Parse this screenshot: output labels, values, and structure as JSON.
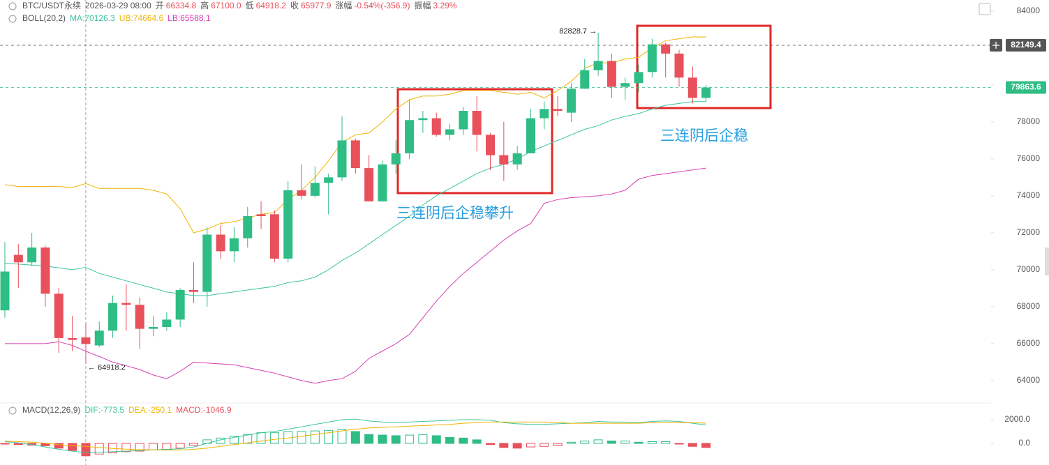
{
  "chart_data": {
    "type": "candlestick",
    "readout": {
      "symbol": "BTC/USDT永续",
      "time": "2026-03-29 08:00",
      "fields": [
        {
          "label": "开",
          "value": "66334.8"
        },
        {
          "label": "高",
          "value": "67100.0"
        },
        {
          "label": "低",
          "value": "64918.2"
        },
        {
          "label": "收",
          "value": "65977.9"
        },
        {
          "label": "涨幅",
          "value": "-0.54%(-356.9)"
        },
        {
          "label": "振幅",
          "value": "3.29%"
        }
      ]
    },
    "up_color": "#2ebd85",
    "down_color": "#e8505b",
    "open": [
      67800,
      70800,
      70400,
      71200,
      68700,
      66300,
      66334.8,
      65900,
      66700,
      68200,
      68100,
      66800,
      66900,
      67300,
      68900,
      68800,
      71900,
      71000,
      71700,
      73000,
      73000,
      70600,
      74300,
      74000,
      74700,
      75000,
      77000,
      75500,
      73700,
      75700,
      76300,
      78100,
      78200,
      77300,
      77600,
      78600,
      77300,
      76200,
      75700,
      76300,
      78200,
      78700,
      78500,
      79800,
      80800,
      81300,
      79900,
      80100,
      80700,
      82200,
      81700,
      80400,
      79300
    ],
    "high": [
      71500,
      71400,
      72000,
      71300,
      69000,
      67500,
      67100,
      67200,
      68600,
      69200,
      68500,
      67500,
      67700,
      69000,
      70400,
      72300,
      72400,
      72300,
      73400,
      73700,
      73200,
      74800,
      75700,
      75600,
      75200,
      78300,
      77100,
      76200,
      75900,
      77000,
      79200,
      78600,
      78500,
      77900,
      78800,
      79400,
      77400,
      78000,
      76700,
      78700,
      79100,
      79400,
      80100,
      81400,
      82828.7,
      81700,
      80400,
      81100,
      82500,
      82300,
      81900,
      81000,
      80000
    ],
    "low": [
      67400,
      69000,
      70200,
      68000,
      65500,
      65600,
      64918.2,
      65800,
      66300,
      66700,
      65700,
      66400,
      66700,
      66900,
      68200,
      68000,
      70600,
      70400,
      71200,
      72200,
      70400,
      70400,
      73800,
      73900,
      73000,
      74800,
      75200,
      73700,
      73700,
      75200,
      76000,
      77400,
      77200,
      77000,
      77300,
      76400,
      75400,
      74800,
      75400,
      76300,
      77600,
      78300,
      78000,
      79800,
      80500,
      79300,
      79200,
      79600,
      80400,
      80400,
      79900,
      79000,
      79100
    ],
    "close": [
      69900,
      70400,
      71200,
      68700,
      66300,
      66200,
      65977.9,
      66700,
      68200,
      68100,
      66800,
      66900,
      67300,
      68900,
      68800,
      71900,
      71000,
      71700,
      72900,
      72900,
      70600,
      74300,
      74000,
      74700,
      75000,
      77000,
      75500,
      73700,
      75700,
      76300,
      78100,
      78200,
      77300,
      77600,
      78600,
      77300,
      76200,
      75700,
      76300,
      78200,
      78700,
      78600,
      79800,
      80800,
      81300,
      79900,
      80100,
      80700,
      82200,
      81700,
      80400,
      79300,
      79863.6
    ],
    "boll": {
      "name": "BOLL(20,2)",
      "lines": [
        {
          "legend": "MA:70126.3",
          "color": "#3cc3a0",
          "values": [
            70350,
            70300,
            70250,
            70200,
            70100,
            70000,
            70126.3,
            69800,
            69600,
            69400,
            69200,
            69000,
            68800,
            68700,
            68600,
            68600,
            68700,
            68800,
            68900,
            69000,
            69100,
            69300,
            69400,
            69600,
            70000,
            70500,
            70900,
            71400,
            71900,
            72400,
            72900,
            73500,
            74000,
            74400,
            74800,
            75200,
            75500,
            75700,
            76000,
            76400,
            76700,
            77000,
            77300,
            77600,
            77800,
            78100,
            78300,
            78450,
            78700,
            78900,
            79000,
            79100,
            79100
          ]
        },
        {
          "legend": "UB:74664.6",
          "color": "#f0b400",
          "values": [
            74600,
            74500,
            74500,
            74500,
            74500,
            74450,
            74664.6,
            74400,
            74400,
            74400,
            74400,
            74300,
            74100,
            73300,
            72000,
            72200,
            72500,
            72600,
            72800,
            73000,
            73100,
            73800,
            74300,
            75000,
            75900,
            76900,
            77300,
            77400,
            78000,
            78700,
            79200,
            79400,
            79400,
            79500,
            79700,
            79700,
            79700,
            79600,
            79500,
            79600,
            79300,
            79700,
            80200,
            80900,
            81200,
            81200,
            81400,
            81500,
            82000,
            82400,
            82500,
            82600,
            82600
          ]
        },
        {
          "legend": "LB:65588.1",
          "color": "#d63fb4",
          "values": [
            66000,
            66000,
            66000,
            66000,
            66100,
            65900,
            65588.1,
            65300,
            65000,
            64800,
            64600,
            64300,
            64100,
            64500,
            65000,
            64950,
            64900,
            64850,
            64700,
            64550,
            64400,
            64200,
            64000,
            63850,
            64000,
            64100,
            64500,
            65200,
            65600,
            66000,
            66500,
            67400,
            68300,
            69100,
            69800,
            70400,
            71000,
            71600,
            72100,
            72500,
            73600,
            73800,
            73900,
            73950,
            74000,
            74100,
            74300,
            74900,
            75100,
            75200,
            75300,
            75400,
            75500
          ]
        }
      ]
    },
    "ylim": [
      62900,
      84600
    ],
    "yticks": [
      64000,
      66000,
      68000,
      70000,
      72000,
      74000,
      76000,
      78000,
      80000,
      82000,
      84000
    ],
    "price_lines": [
      {
        "value": 82149.4,
        "color": "#555555"
      },
      {
        "value": 79863.6,
        "color": "#2ebd85"
      }
    ],
    "extremes": [
      {
        "index": 44,
        "value": 82828.7,
        "label": "82828.7 →"
      },
      {
        "index": 6,
        "value": 64918.2,
        "label": "← 64918.2"
      }
    ],
    "crosshair_index": 6,
    "annotations": [
      "三连阴后企稳攀升",
      "三连阴后企稳"
    ],
    "macd": {
      "name": "MACD(12,26,9)",
      "ylim": [
        -1820,
        3290
      ],
      "yticks": [
        {
          "value": 2000,
          "label": "2000.0"
        },
        {
          "value": 0,
          "label": "0.0"
        }
      ],
      "histogram": {
        "legend": "MACD:-1046.9",
        "color_up": "#2ebd85",
        "color_down": "#e8505b",
        "values": [
          -50,
          -100,
          -150,
          -200,
          -400,
          -600,
          -1046.9,
          -900,
          -800,
          -700,
          -650,
          -550,
          -500,
          -400,
          -150,
          300,
          450,
          600,
          750,
          900,
          900,
          1000,
          1000,
          1050,
          1100,
          1150,
          1000,
          750,
          700,
          650,
          700,
          750,
          650,
          500,
          450,
          300,
          -100,
          -350,
          -400,
          -300,
          -250,
          -200,
          100,
          200,
          300,
          200,
          200,
          100,
          150,
          150,
          -50,
          -250,
          -350
        ]
      },
      "lines": [
        {
          "legend": "DIF:-773.5",
          "color": "#3cc3a0",
          "values": [
            150,
            50,
            -100,
            -300,
            -500,
            -650,
            -773.5,
            -750,
            -700,
            -650,
            -600,
            -550,
            -500,
            -450,
            -300,
            0,
            300,
            500,
            700,
            900,
            1000,
            1200,
            1400,
            1600,
            1800,
            2000,
            2050,
            1900,
            1800,
            1750,
            1800,
            1850,
            1900,
            1950,
            2000,
            2000,
            1950,
            1750,
            1650,
            1600,
            1600,
            1650,
            1700,
            1750,
            1850,
            1800,
            1800,
            1750,
            1850,
            1900,
            1850,
            1700,
            1550
          ]
        },
        {
          "legend": "DEA:-250.1",
          "color": "#f0b400",
          "values": [
            200,
            150,
            100,
            20,
            -100,
            -200,
            -250.1,
            -350,
            -420,
            -480,
            -520,
            -550,
            -560,
            -560,
            -500,
            -400,
            -250,
            -100,
            50,
            200,
            350,
            450,
            600,
            750,
            900,
            1050,
            1200,
            1300,
            1350,
            1400,
            1450,
            1500,
            1550,
            1600,
            1700,
            1750,
            1800,
            1800,
            1800,
            1800,
            1800,
            1750,
            1700,
            1700,
            1700,
            1700,
            1700,
            1700,
            1750,
            1750,
            1750,
            1750,
            1700
          ]
        }
      ]
    }
  }
}
